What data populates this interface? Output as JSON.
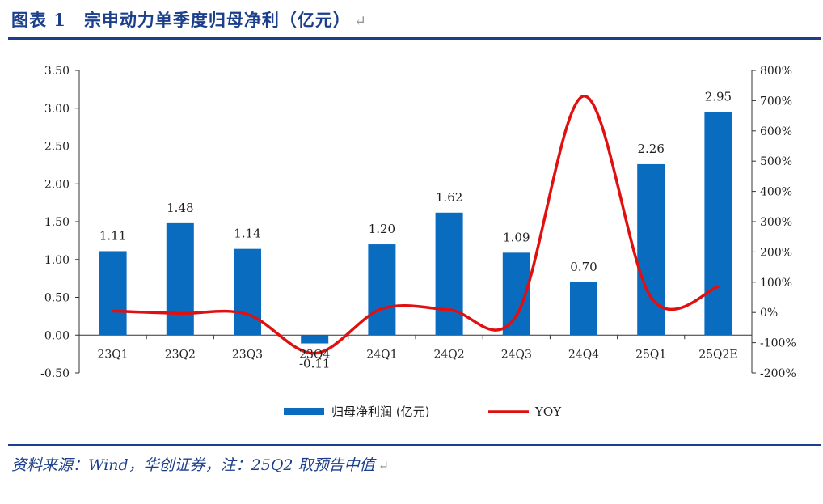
{
  "title": {
    "label": "图表 1",
    "text": "宗申动力单季度归母净利（亿元）",
    "return_mark": "↵"
  },
  "source": {
    "text": "资料来源：Wind，华创证券，注：25Q2 取预告中值",
    "return_mark": "↵"
  },
  "colors": {
    "title": "#1b3f8b",
    "bar": "#0a6cbf",
    "line": "#e01010",
    "axis": "#333333"
  },
  "chart_data": {
    "type": "bar+line",
    "categories": [
      "23Q1",
      "23Q2",
      "23Q3",
      "23Q4",
      "24Q1",
      "24Q2",
      "24Q3",
      "24Q4",
      "25Q1",
      "25Q2E"
    ],
    "series": [
      {
        "name": "归母净利润 (亿元)",
        "type": "bar",
        "axis": "left",
        "values": [
          1.11,
          1.48,
          1.14,
          -0.11,
          1.2,
          1.62,
          1.09,
          0.7,
          2.26,
          2.95
        ],
        "labels": [
          "1.11",
          "1.48",
          "1.14",
          "-0.11",
          "1.20",
          "1.62",
          "1.09",
          "0.70",
          "2.26",
          "2.95"
        ]
      },
      {
        "name": "YOY",
        "type": "line",
        "smooth": true,
        "axis": "right",
        "values": [
          5,
          -3,
          -6,
          -135,
          12,
          9,
          -10,
          715,
          50,
          85
        ]
      }
    ],
    "left_axis": {
      "ylim": [
        -0.5,
        3.5
      ],
      "ticks": [
        -0.5,
        0.0,
        0.5,
        1.0,
        1.5,
        2.0,
        2.5,
        3.0,
        3.5
      ],
      "tick_labels": [
        "-0.50",
        "0.00",
        "0.50",
        "1.00",
        "1.50",
        "2.00",
        "2.50",
        "3.00",
        "3.50"
      ]
    },
    "right_axis": {
      "ylim": [
        -200,
        800
      ],
      "ticks": [
        -200,
        -100,
        0,
        100,
        200,
        300,
        400,
        500,
        600,
        700,
        800
      ],
      "tick_labels": [
        "-200%",
        "-100%",
        "0%",
        "100%",
        "200%",
        "300%",
        "400%",
        "500%",
        "600%",
        "700%",
        "800%"
      ]
    },
    "legend": {
      "position": "bottom",
      "entries": [
        "归母净利润 (亿元)",
        "YOY"
      ]
    }
  }
}
